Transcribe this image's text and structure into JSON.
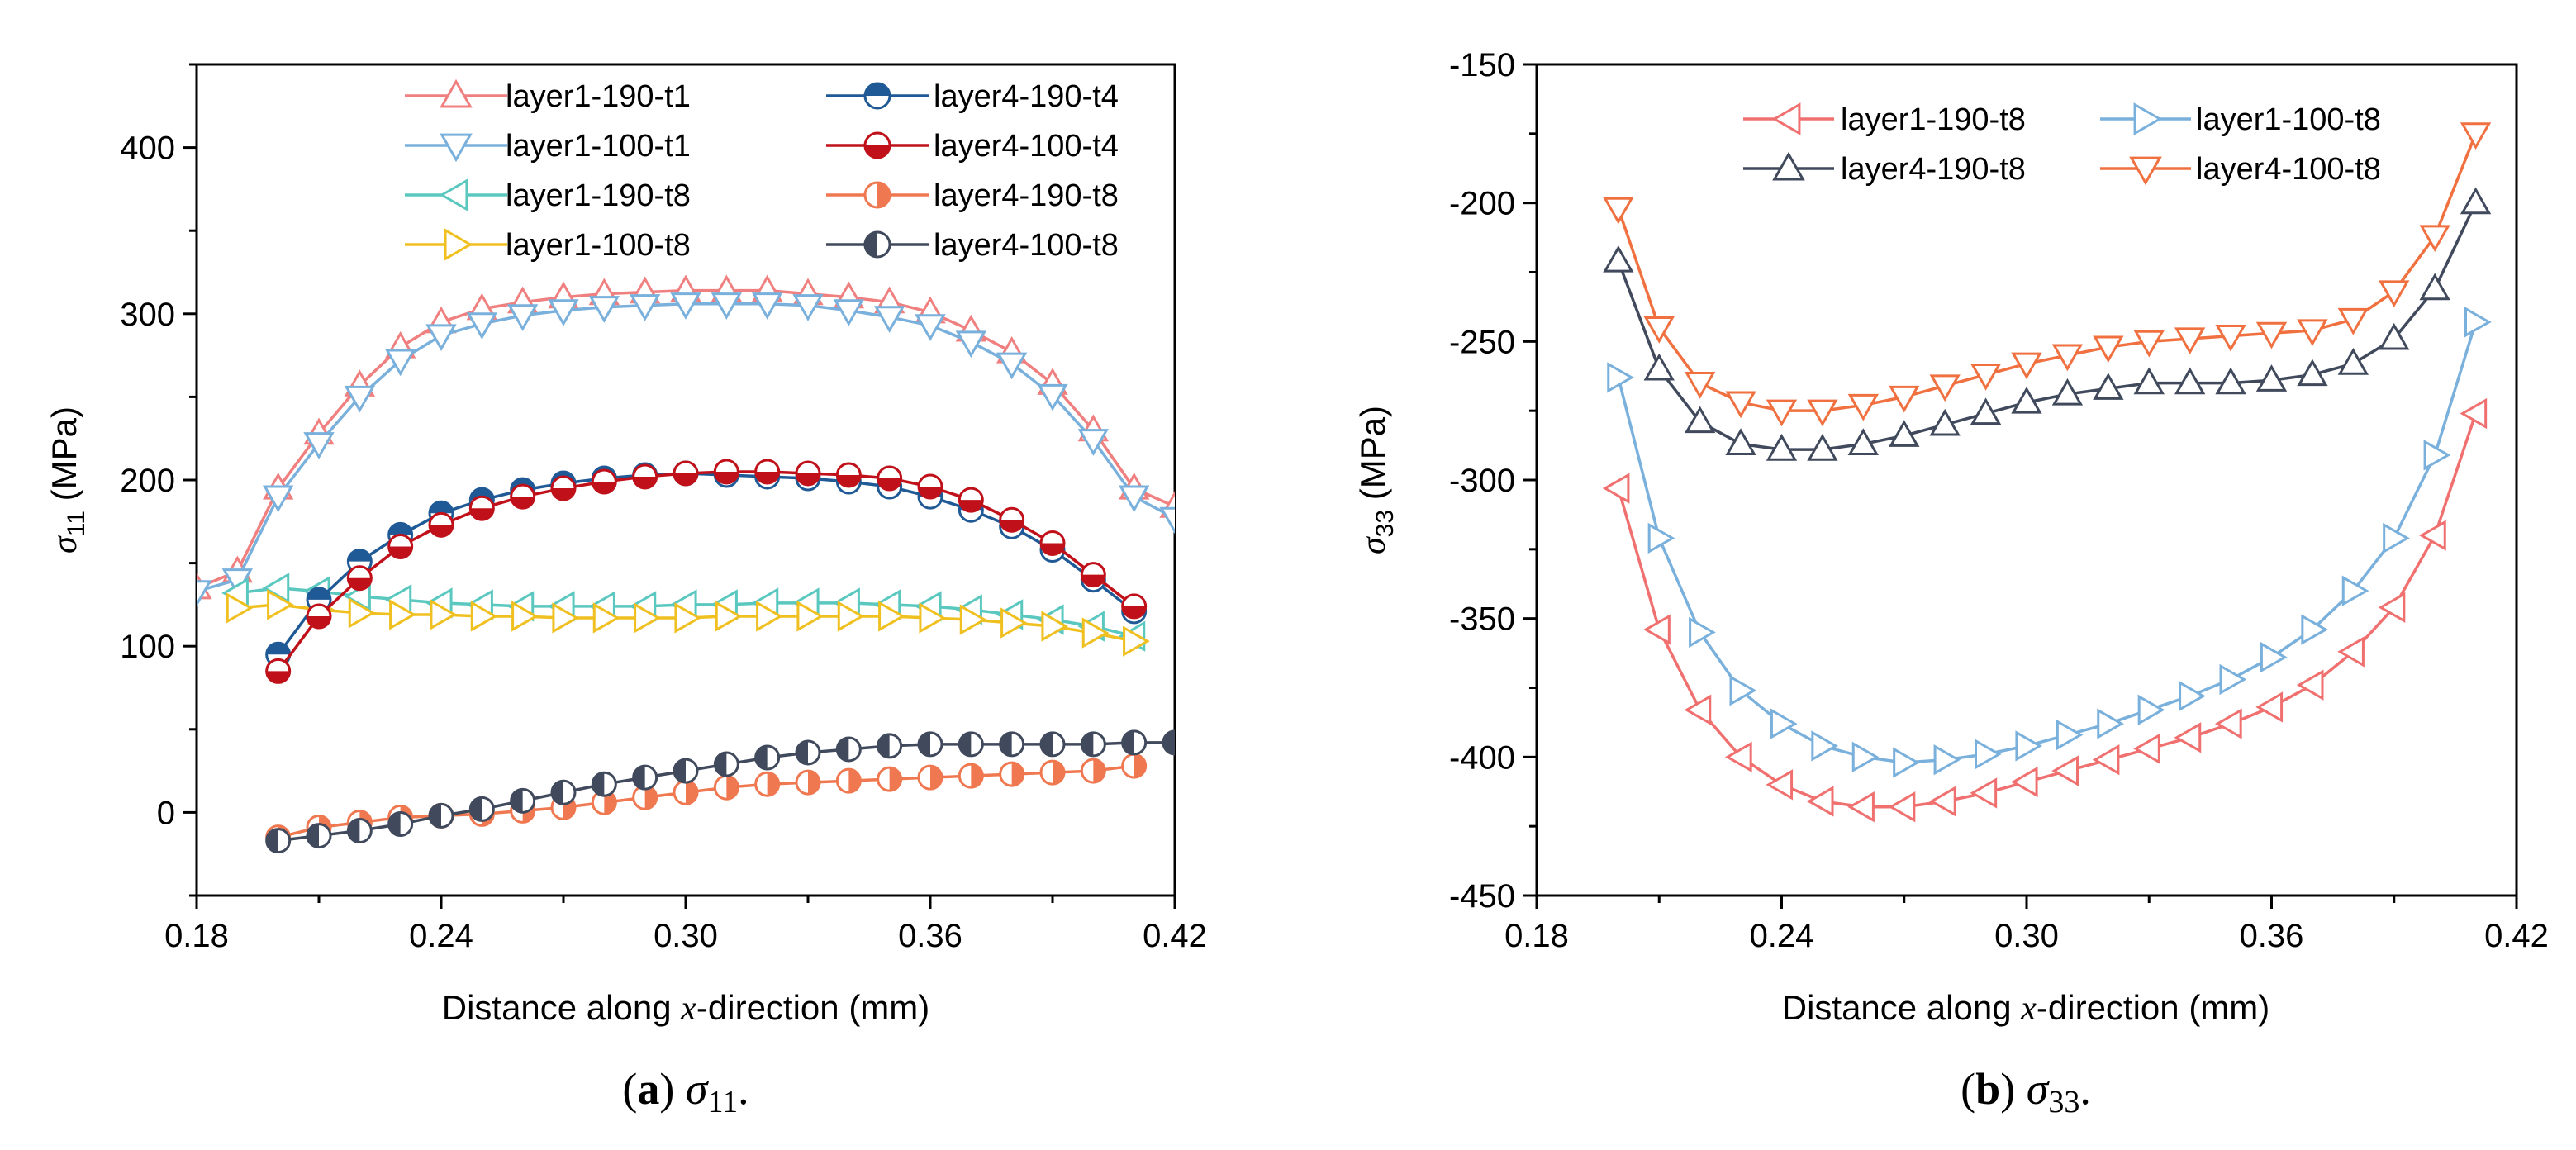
{
  "figure": {
    "captions": [
      {
        "label": "a",
        "symbol": "σ",
        "sub": "11",
        "suffix": "."
      },
      {
        "label": "b",
        "symbol": "σ",
        "sub": "33",
        "suffix": "."
      }
    ]
  },
  "chart_data": [
    {
      "type": "line",
      "panel": "a",
      "xlabel_prefix": "Distance along ",
      "xlabel_var": "x",
      "xlabel_suffix": "-direction (mm)",
      "ylabel_symbol": "σ",
      "ylabel_sub": "11",
      "ylabel_unit": " (MPa)",
      "xlim": [
        0.18,
        0.42
      ],
      "ylim": [
        -50,
        450
      ],
      "xticks": [
        0.18,
        0.24,
        0.3,
        0.36,
        0.42
      ],
      "xtick_labels": [
        "0.18",
        "0.24",
        "0.30",
        "0.36",
        "0.42"
      ],
      "yticks": [
        0,
        100,
        200,
        300,
        400
      ],
      "ytick_labels": [
        "0",
        "100",
        "200",
        "300",
        "400"
      ],
      "legend_position": "top",
      "series": [
        {
          "name": "layer1-190-t1",
          "color": "#f08080",
          "marker": "triangle-up",
          "x": [
            0.18,
            0.19,
            0.2,
            0.21,
            0.22,
            0.23,
            0.24,
            0.25,
            0.26,
            0.27,
            0.28,
            0.29,
            0.3,
            0.31,
            0.32,
            0.33,
            0.34,
            0.35,
            0.36,
            0.37,
            0.38,
            0.39,
            0.4,
            0.41,
            0.42
          ],
          "y": [
            135,
            145,
            195,
            228,
            257,
            280,
            295,
            303,
            307,
            310,
            312,
            313,
            314,
            314,
            314,
            312,
            310,
            307,
            301,
            290,
            277,
            258,
            230,
            195,
            184
          ]
        },
        {
          "name": "layer1-100-t1",
          "color": "#7ab0dc",
          "marker": "triangle-down",
          "x": [
            0.18,
            0.19,
            0.2,
            0.21,
            0.22,
            0.23,
            0.24,
            0.25,
            0.26,
            0.27,
            0.28,
            0.29,
            0.3,
            0.31,
            0.32,
            0.33,
            0.34,
            0.35,
            0.36,
            0.37,
            0.38,
            0.39,
            0.4,
            0.41,
            0.42
          ],
          "y": [
            133,
            140,
            190,
            222,
            250,
            272,
            287,
            294,
            299,
            302,
            304,
            305,
            306,
            306,
            306,
            305,
            302,
            298,
            293,
            283,
            270,
            251,
            224,
            190,
            177
          ]
        },
        {
          "name": "layer1-190-t8",
          "color": "#5bc8c0",
          "marker": "triangle-left",
          "x": [
            0.19,
            0.2,
            0.21,
            0.22,
            0.23,
            0.24,
            0.25,
            0.26,
            0.27,
            0.28,
            0.29,
            0.3,
            0.31,
            0.32,
            0.33,
            0.34,
            0.35,
            0.36,
            0.37,
            0.38,
            0.39,
            0.4,
            0.41
          ],
          "y": [
            132,
            135,
            133,
            130,
            128,
            126,
            125,
            124,
            124,
            124,
            124,
            125,
            125,
            126,
            126,
            126,
            125,
            124,
            122,
            119,
            116,
            112,
            106
          ]
        },
        {
          "name": "layer1-100-t8",
          "color": "#f0c020",
          "marker": "triangle-right",
          "x": [
            0.19,
            0.2,
            0.21,
            0.22,
            0.23,
            0.24,
            0.25,
            0.26,
            0.27,
            0.28,
            0.29,
            0.3,
            0.31,
            0.32,
            0.33,
            0.34,
            0.35,
            0.36,
            0.37,
            0.38,
            0.39,
            0.4,
            0.41
          ],
          "y": [
            123,
            125,
            122,
            120,
            119,
            119,
            118,
            118,
            117,
            117,
            117,
            117,
            118,
            118,
            118,
            118,
            118,
            117,
            116,
            114,
            112,
            108,
            103
          ]
        },
        {
          "name": "layer4-190-t4",
          "color": "#1f5a96",
          "marker": "circle-half-top",
          "x": [
            0.2,
            0.21,
            0.22,
            0.23,
            0.24,
            0.25,
            0.26,
            0.27,
            0.28,
            0.29,
            0.3,
            0.31,
            0.32,
            0.33,
            0.34,
            0.35,
            0.36,
            0.37,
            0.38,
            0.39,
            0.4,
            0.41
          ],
          "y": [
            95,
            128,
            151,
            167,
            180,
            188,
            194,
            198,
            201,
            203,
            204,
            203,
            202,
            201,
            199,
            196,
            190,
            182,
            172,
            158,
            140,
            121
          ]
        },
        {
          "name": "layer4-100-t4",
          "color": "#c0101a",
          "marker": "circle-half-bottom",
          "x": [
            0.2,
            0.21,
            0.22,
            0.23,
            0.24,
            0.25,
            0.26,
            0.27,
            0.28,
            0.29,
            0.3,
            0.31,
            0.32,
            0.33,
            0.34,
            0.35,
            0.36,
            0.37,
            0.38,
            0.39,
            0.4,
            0.41
          ],
          "y": [
            85,
            118,
            141,
            160,
            173,
            183,
            190,
            195,
            199,
            202,
            204,
            205,
            205,
            204,
            203,
            201,
            196,
            188,
            176,
            162,
            143,
            124
          ]
        },
        {
          "name": "layer4-190-t8",
          "color": "#f07850",
          "marker": "circle-half-right",
          "x": [
            0.2,
            0.21,
            0.22,
            0.23,
            0.24,
            0.25,
            0.26,
            0.27,
            0.28,
            0.29,
            0.3,
            0.31,
            0.32,
            0.33,
            0.34,
            0.35,
            0.36,
            0.37,
            0.38,
            0.39,
            0.4,
            0.41
          ],
          "y": [
            -15,
            -9,
            -6,
            -3,
            -2,
            -1,
            1,
            3,
            6,
            9,
            12,
            15,
            17,
            18,
            19,
            20,
            21,
            22,
            23,
            24,
            25,
            28
          ]
        },
        {
          "name": "layer4-100-t8",
          "color": "#404a5c",
          "marker": "circle-half-left",
          "x": [
            0.2,
            0.21,
            0.22,
            0.23,
            0.24,
            0.25,
            0.26,
            0.27,
            0.28,
            0.29,
            0.3,
            0.31,
            0.32,
            0.33,
            0.34,
            0.35,
            0.36,
            0.37,
            0.38,
            0.39,
            0.4,
            0.41,
            0.42
          ],
          "y": [
            -17,
            -14,
            -11,
            -7,
            -2,
            2,
            7,
            12,
            17,
            21,
            25,
            29,
            33,
            36,
            38,
            40,
            41,
            41,
            41,
            41,
            41,
            42,
            42
          ]
        }
      ]
    },
    {
      "type": "line",
      "panel": "b",
      "xlabel_prefix": "Distance along ",
      "xlabel_var": "x",
      "xlabel_suffix": "-direction (mm)",
      "ylabel_symbol": "σ",
      "ylabel_sub": "33",
      "ylabel_unit": " (MPa)",
      "xlim": [
        0.18,
        0.42
      ],
      "ylim": [
        -450,
        -150
      ],
      "xticks": [
        0.18,
        0.24,
        0.3,
        0.36,
        0.42
      ],
      "xtick_labels": [
        "0.18",
        "0.24",
        "0.30",
        "0.36",
        "0.42"
      ],
      "yticks": [
        -450,
        -400,
        -350,
        -300,
        -250,
        -200,
        -150
      ],
      "ytick_labels": [
        "-450",
        "-400",
        "-350",
        "-300",
        "-250",
        "-200",
        "-150"
      ],
      "legend_position": "top",
      "series": [
        {
          "name": "layer1-190-t8",
          "color": "#f07070",
          "marker": "triangle-left",
          "x": [
            0.2,
            0.21,
            0.22,
            0.23,
            0.24,
            0.25,
            0.26,
            0.27,
            0.28,
            0.29,
            0.3,
            0.31,
            0.32,
            0.33,
            0.34,
            0.35,
            0.36,
            0.37,
            0.38,
            0.39,
            0.4,
            0.41
          ],
          "y": [
            -303,
            -354,
            -383,
            -400,
            -410,
            -416,
            -418,
            -418,
            -416,
            -413,
            -409,
            -405,
            -401,
            -397,
            -393,
            -388,
            -382,
            -374,
            -362,
            -346,
            -320,
            -276
          ]
        },
        {
          "name": "layer1-100-t8",
          "color": "#7ab0dc",
          "marker": "triangle-right",
          "x": [
            0.2,
            0.21,
            0.22,
            0.23,
            0.24,
            0.25,
            0.26,
            0.27,
            0.28,
            0.29,
            0.3,
            0.31,
            0.32,
            0.33,
            0.34,
            0.35,
            0.36,
            0.37,
            0.38,
            0.39,
            0.4,
            0.41
          ],
          "y": [
            -263,
            -321,
            -355,
            -376,
            -388,
            -396,
            -400,
            -402,
            -401,
            -399,
            -396,
            -392,
            -388,
            -383,
            -378,
            -372,
            -364,
            -354,
            -340,
            -321,
            -291,
            -243
          ]
        },
        {
          "name": "layer4-190-t8",
          "color": "#404a5c",
          "marker": "triangle-up",
          "x": [
            0.2,
            0.21,
            0.22,
            0.23,
            0.24,
            0.25,
            0.26,
            0.27,
            0.28,
            0.29,
            0.3,
            0.31,
            0.32,
            0.33,
            0.34,
            0.35,
            0.36,
            0.37,
            0.38,
            0.39,
            0.4,
            0.41
          ],
          "y": [
            -221,
            -260,
            -279,
            -287,
            -289,
            -289,
            -287,
            -284,
            -280,
            -276,
            -272,
            -269,
            -267,
            -265,
            -265,
            -265,
            -264,
            -262,
            -258,
            -249,
            -231,
            -200
          ]
        },
        {
          "name": "layer4-100-t8",
          "color": "#f07040",
          "marker": "triangle-down",
          "x": [
            0.2,
            0.21,
            0.22,
            0.23,
            0.24,
            0.25,
            0.26,
            0.27,
            0.28,
            0.29,
            0.3,
            0.31,
            0.32,
            0.33,
            0.34,
            0.35,
            0.36,
            0.37,
            0.38,
            0.39,
            0.4,
            0.41
          ],
          "y": [
            -202,
            -245,
            -265,
            -272,
            -275,
            -275,
            -273,
            -270,
            -266,
            -262,
            -258,
            -255,
            -252,
            -250,
            -249,
            -248,
            -247,
            -246,
            -242,
            -232,
            -212,
            -175
          ]
        }
      ]
    }
  ]
}
